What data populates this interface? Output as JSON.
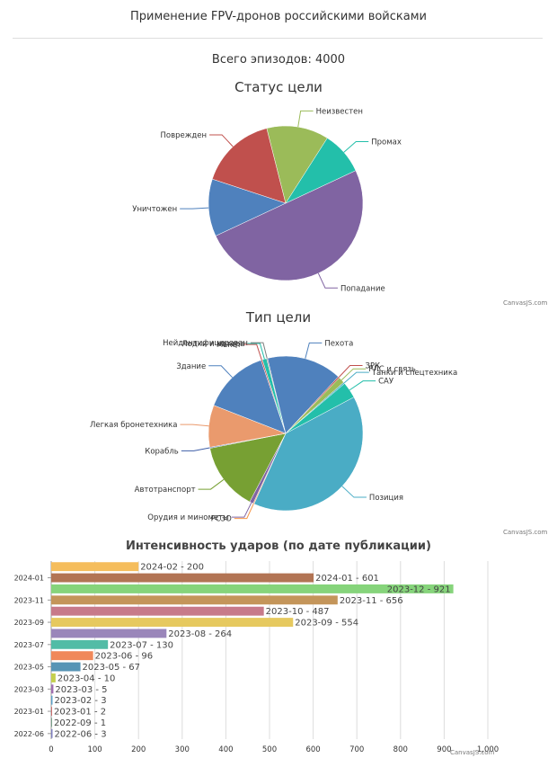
{
  "page": {
    "title": "Применение FPV-дронов российскими войсками",
    "total": "Всего эпизодов: 4000",
    "credit": "CanvasJS.com"
  },
  "chart_data": [
    {
      "type": "pie",
      "title": "Статус цели",
      "labels": [
        "Попадание",
        "Уничтожен",
        "Поврежден",
        "Неизвестен",
        "Промах"
      ],
      "values": [
        50,
        12,
        16,
        13,
        9
      ],
      "colors": [
        "#8064a2",
        "#4f81bd",
        "#c0504d",
        "#9bbb59",
        "#23bfaa"
      ],
      "start_angle_deg": -25
    },
    {
      "type": "pie",
      "title": "Тип цели",
      "labels": [
        "Позиция",
        "РСЗО",
        "Орудия и минометы",
        "Автотранспорт",
        "Корабль",
        "Легкая бронетехника",
        "Здание",
        "Макет",
        "Лодки и катера",
        "Нейдентифицирован",
        "Пехота",
        "ЗРК",
        "РЛС и связь",
        "Танки и спецтехника",
        "САУ"
      ],
      "values": [
        39.5,
        0.2,
        0.8,
        14.2,
        0.2,
        8.8,
        13.9,
        0.3,
        0.9,
        0.2,
        15.7,
        0.3,
        1.3,
        0.3,
        3.4
      ],
      "colors": [
        "#4aacc5",
        "#f79647",
        "#8064a2",
        "#77a033",
        "#3f5fa8",
        "#ea9a6d",
        "#4f81bd",
        "#c0504d",
        "#23bfaa",
        "#7f7f7f",
        "#4f81bd",
        "#c0504d",
        "#9bbb59",
        "#4aacc5",
        "#23bfaa"
      ],
      "start_angle_deg": -28
    },
    {
      "type": "bar",
      "orientation": "horizontal",
      "title": "Интенсивность ударов (по дате публикации)",
      "categories": [
        "2024-02",
        "2024-01",
        "2023-12",
        "2023-11",
        "2023-10",
        "2023-09",
        "2023-08",
        "2023-07",
        "2023-06",
        "2023-05",
        "2023-04",
        "2023-03",
        "2023-02",
        "2023-01",
        "2022-09",
        "2022-06"
      ],
      "values": [
        200,
        601,
        921,
        656,
        487,
        554,
        264,
        130,
        96,
        67,
        10,
        5,
        3,
        2,
        1,
        3
      ],
      "colors": [
        "#f5bd5c",
        "#b27454",
        "#86d47b",
        "#c4955a",
        "#c77a8a",
        "#e6c95f",
        "#9a86ba",
        "#52bca6",
        "#f0885a",
        "#5794b5",
        "#c4cf4d",
        "#a06fb0",
        "#5aa0c8",
        "#cc7070",
        "#7aa08a",
        "#8080c0"
      ],
      "axis_tick_labels": [
        "2024-01",
        "2023-11",
        "2023-09",
        "2023-07",
        "2023-05",
        "2023-03",
        "2023-01",
        "2022-06"
      ],
      "xlim": [
        0,
        1000
      ],
      "xticks": [
        0,
        100,
        200,
        300,
        400,
        500,
        600,
        700,
        800,
        900,
        1000
      ],
      "xtick_labels": [
        "0",
        "100",
        "200",
        "300",
        "400",
        "500",
        "600",
        "700",
        "800",
        "900",
        "1,000"
      ],
      "grid": true
    }
  ]
}
